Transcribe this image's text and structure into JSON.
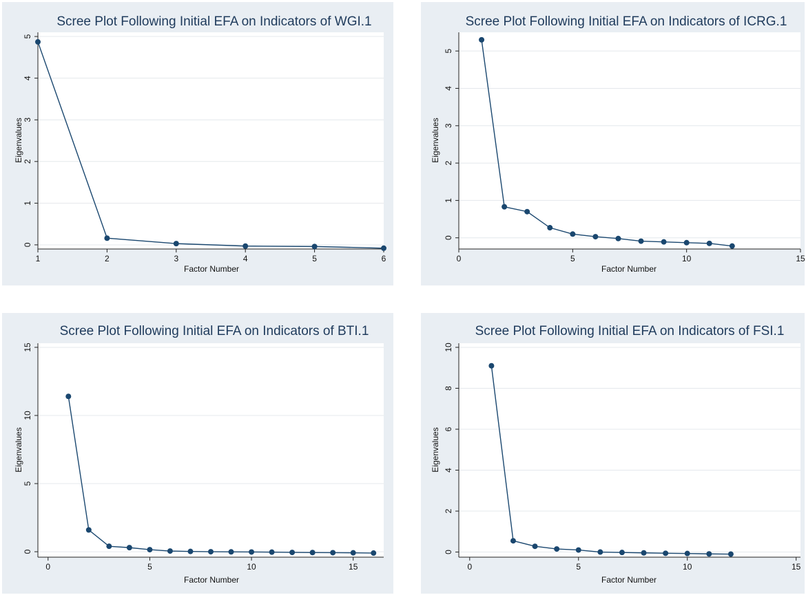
{
  "colors": {
    "series": "#1a476f",
    "background": "#e9eef3",
    "plot_bg": "#ffffff",
    "title": "#1f3b5c"
  },
  "chart_data": [
    {
      "type": "line",
      "title": "Scree Plot Following Initial EFA on Indicators of WGI.1",
      "xlabel": "Factor Number",
      "ylabel": "Eigenvalues",
      "xlim": [
        1,
        6
      ],
      "ylim": [
        -0.1,
        5.1
      ],
      "xticks": [
        1,
        2,
        3,
        4,
        5,
        6
      ],
      "yticks": [
        0,
        1,
        2,
        3,
        4,
        5
      ],
      "grid": true,
      "x": [
        1,
        2,
        3,
        4,
        5,
        6
      ],
      "values": [
        4.87,
        0.16,
        0.03,
        -0.03,
        -0.04,
        -0.08
      ]
    },
    {
      "type": "line",
      "title": "Scree Plot Following Initial EFA on Indicators of ICRG.1",
      "xlabel": "Factor Number",
      "ylabel": "Eigenvalues",
      "xlim": [
        0,
        15
      ],
      "ylim": [
        -0.3,
        5.5
      ],
      "xticks": [
        0,
        5,
        10,
        15
      ],
      "yticks": [
        0,
        1,
        2,
        3,
        4,
        5
      ],
      "grid": true,
      "x": [
        1,
        2,
        3,
        4,
        5,
        6,
        7,
        8,
        9,
        10,
        11,
        12
      ],
      "values": [
        5.3,
        0.83,
        0.7,
        0.27,
        0.1,
        0.03,
        -0.02,
        -0.09,
        -0.11,
        -0.13,
        -0.15,
        -0.22
      ]
    },
    {
      "type": "line",
      "title": "Scree Plot Following Initial EFA on Indicators of BTI.1",
      "xlabel": "Factor Number",
      "ylabel": "Eigenvalues",
      "xlim": [
        -0.5,
        16.5
      ],
      "ylim": [
        -0.4,
        15.3
      ],
      "xticks": [
        0,
        5,
        10,
        15
      ],
      "yticks": [
        0,
        5,
        10,
        15
      ],
      "grid": true,
      "x": [
        1,
        2,
        3,
        4,
        5,
        6,
        7,
        8,
        9,
        10,
        11,
        12,
        13,
        14,
        15,
        16
      ],
      "values": [
        11.4,
        1.6,
        0.4,
        0.3,
        0.15,
        0.05,
        0.02,
        0.0,
        -0.01,
        -0.02,
        -0.03,
        -0.05,
        -0.06,
        -0.07,
        -0.08,
        -0.1
      ]
    },
    {
      "type": "line",
      "title": "Scree Plot Following Initial EFA on Indicators of FSI.1",
      "xlabel": "Factor Number",
      "ylabel": "Eigenvalues",
      "xlim": [
        -0.5,
        15.2
      ],
      "ylim": [
        -0.25,
        10.2
      ],
      "xticks": [
        0,
        5,
        10,
        15
      ],
      "yticks": [
        0,
        2,
        4,
        6,
        8,
        10
      ],
      "grid": true,
      "x": [
        1,
        2,
        3,
        4,
        5,
        6,
        7,
        8,
        9,
        10,
        11,
        12
      ],
      "values": [
        9.1,
        0.55,
        0.28,
        0.15,
        0.1,
        0.0,
        -0.02,
        -0.04,
        -0.06,
        -0.07,
        -0.09,
        -0.1
      ]
    }
  ]
}
